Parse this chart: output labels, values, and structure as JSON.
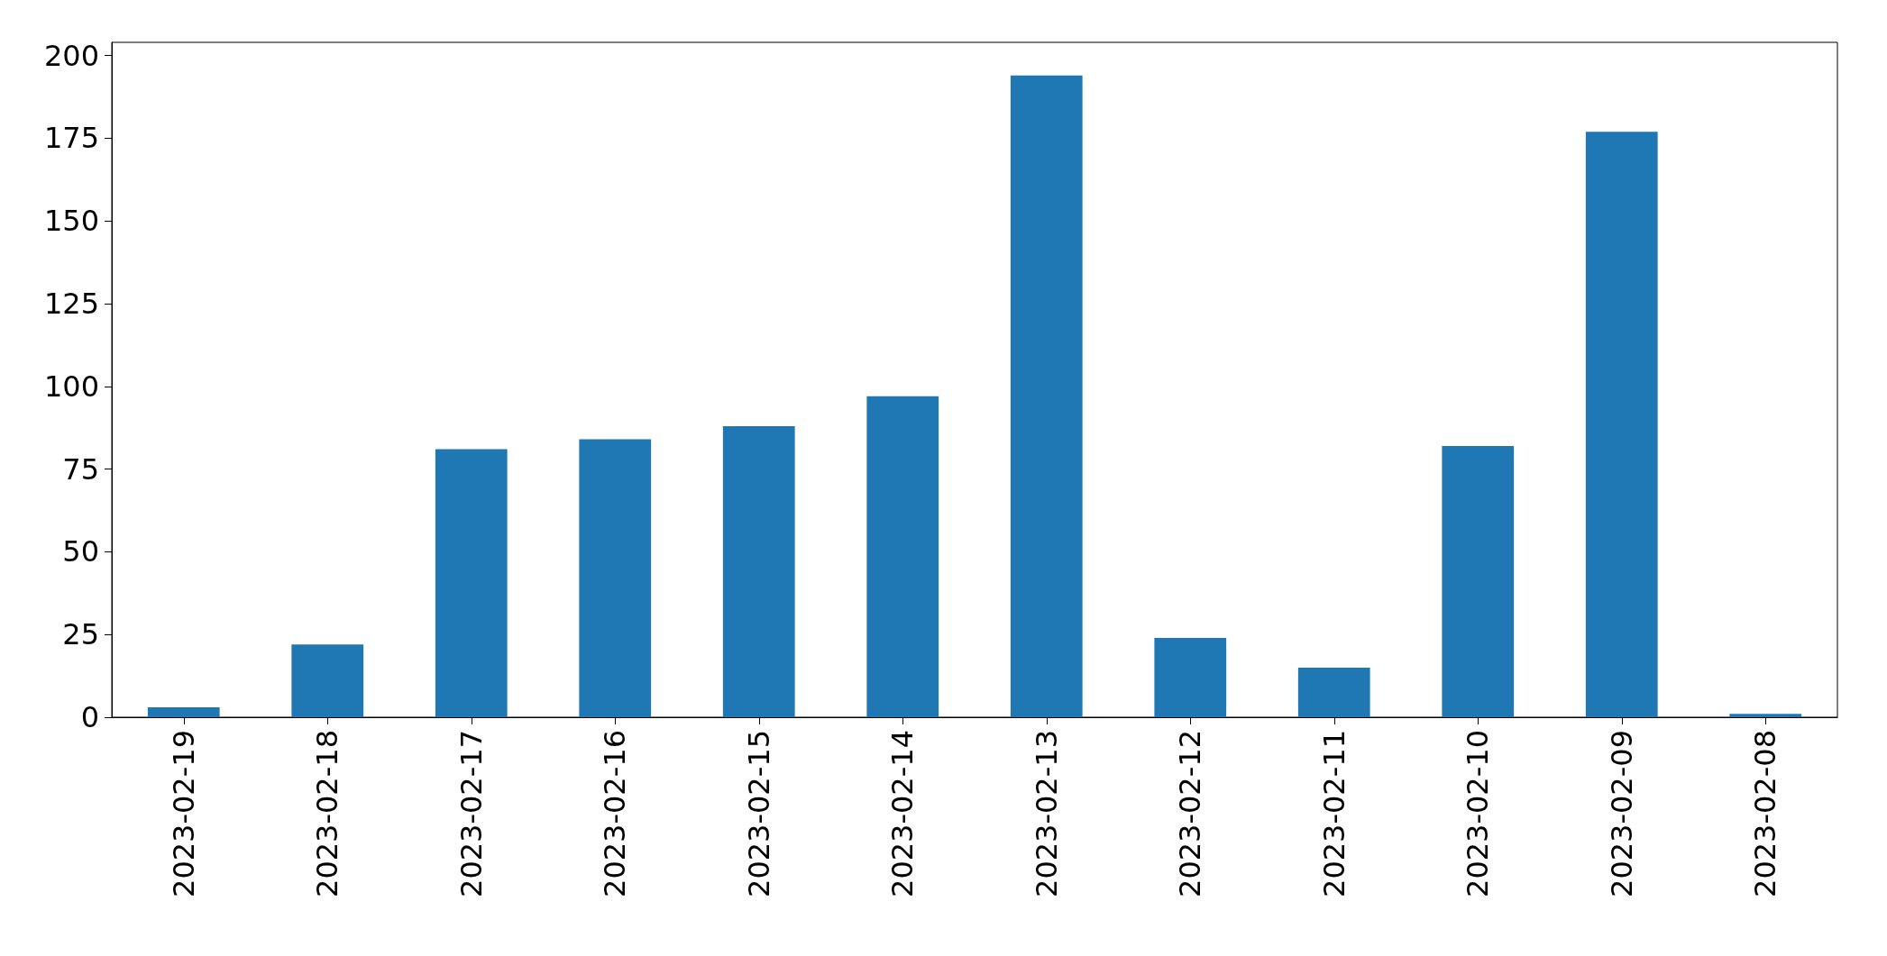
{
  "chart_data": {
    "type": "bar",
    "categories": [
      "2023-02-19",
      "2023-02-18",
      "2023-02-17",
      "2023-02-16",
      "2023-02-15",
      "2023-02-14",
      "2023-02-13",
      "2023-02-12",
      "2023-02-11",
      "2023-02-10",
      "2023-02-09",
      "2023-02-08"
    ],
    "values": [
      3,
      22,
      81,
      84,
      88,
      97,
      194,
      24,
      15,
      82,
      177,
      1
    ],
    "color": "#1f77b4",
    "ylim": [
      0,
      204
    ],
    "yticks": [
      0,
      25,
      50,
      75,
      100,
      125,
      150,
      175,
      200
    ],
    "grid": false
  }
}
